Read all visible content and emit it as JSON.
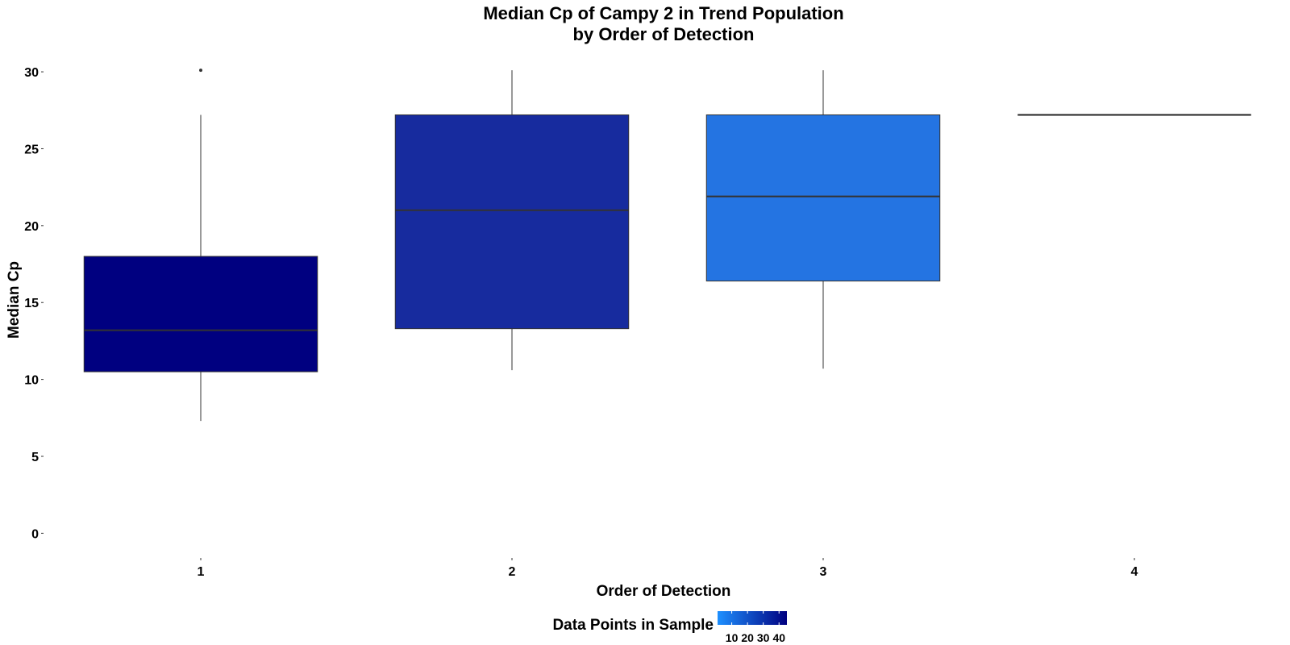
{
  "chart_data": {
    "type": "boxplot",
    "title_lines": [
      "Median Cp of Campy 2 in Trend Population",
      "by Order of Detection"
    ],
    "xlabel": "Order of Detection",
    "ylabel": "Median Cp",
    "categories": [
      "1",
      "2",
      "3",
      "4"
    ],
    "ylim": [
      -1.5,
      31
    ],
    "yticks": [
      0,
      5,
      10,
      15,
      20,
      25,
      30
    ],
    "grid": false,
    "boxes": [
      {
        "category": "1",
        "min": 7.3,
        "q1": 10.5,
        "median": 13.2,
        "q3": 18.0,
        "max": 27.2,
        "outliers": [
          30.1
        ],
        "count": 45,
        "color": "#000080"
      },
      {
        "category": "2",
        "min": 10.6,
        "q1": 13.3,
        "median": 21.0,
        "q3": 27.2,
        "max": 30.1,
        "outliers": [],
        "count": 34,
        "color": "#172b9e"
      },
      {
        "category": "3",
        "min": 10.7,
        "q1": 16.4,
        "median": 21.9,
        "q3": 27.2,
        "max": 30.1,
        "outliers": [],
        "count": 10,
        "color": "#2474e2"
      },
      {
        "category": "4",
        "min": 27.2,
        "q1": 27.2,
        "median": 27.2,
        "q3": 27.2,
        "max": 27.2,
        "outliers": [],
        "count": 1,
        "color": "#1e90ff"
      }
    ],
    "legend": {
      "title": "Data Points in Sample",
      "position": "bottom",
      "ticks": [
        "10",
        "20",
        "30",
        "40"
      ],
      "tick_values": [
        10,
        20,
        30,
        40
      ],
      "range": [
        1,
        45
      ],
      "low_color": "#1e90ff",
      "high_color": "#000080"
    }
  }
}
